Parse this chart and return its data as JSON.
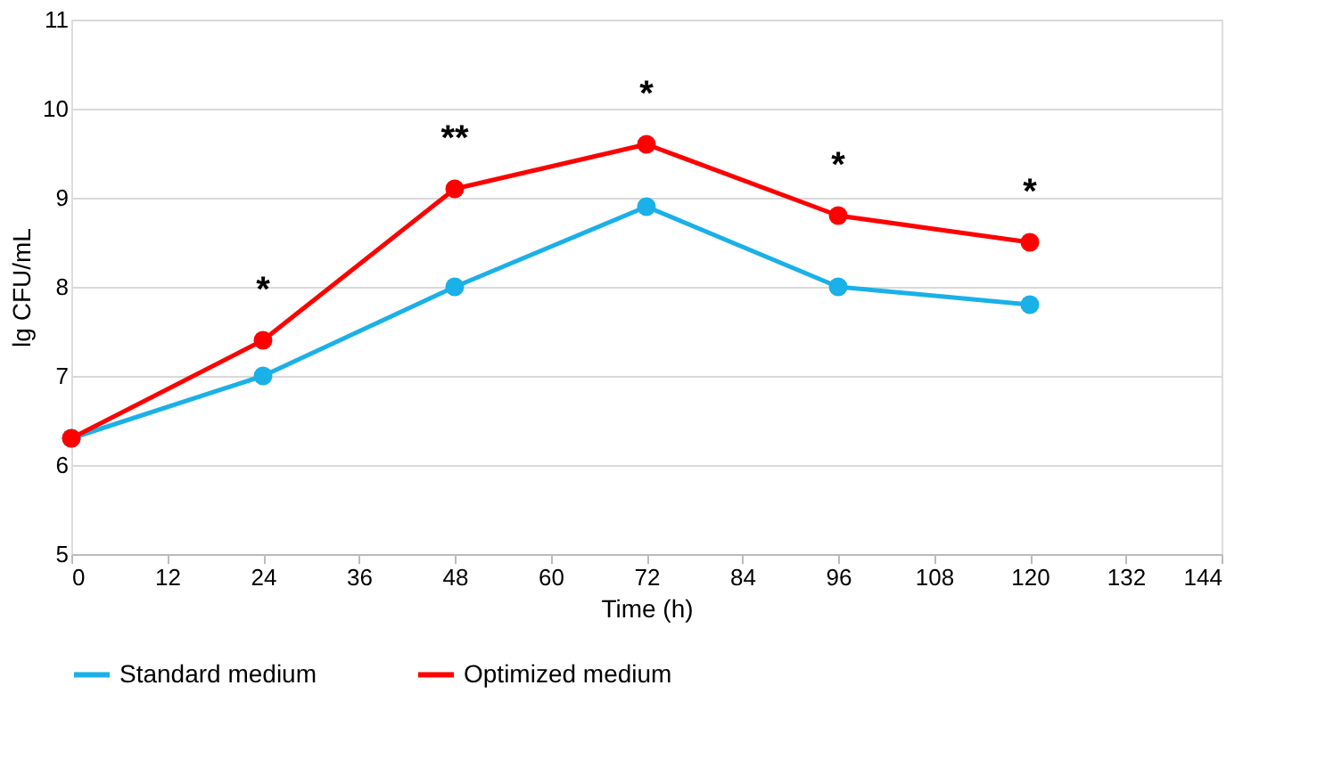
{
  "chart_data": {
    "type": "line",
    "xlabel": "Time (h)",
    "ylabel": "lg CFU/mL",
    "x": [
      0,
      24,
      48,
      72,
      96,
      120
    ],
    "series": [
      {
        "name": "Standard medium",
        "color": "#1ab0e8",
        "values": [
          6.3,
          7.0,
          8.0,
          8.9,
          8.0,
          7.8
        ]
      },
      {
        "name": "Optimized medium",
        "color": "#ff0000",
        "values": [
          6.3,
          7.4,
          9.1,
          9.6,
          8.8,
          8.5
        ]
      }
    ],
    "xlim": [
      0,
      144
    ],
    "xticks": [
      0,
      12,
      24,
      36,
      48,
      60,
      72,
      84,
      96,
      108,
      120,
      132,
      144
    ],
    "ylim": [
      5,
      11
    ],
    "yticks": [
      5,
      6,
      7,
      8,
      9,
      10,
      11
    ],
    "annotations": [
      {
        "text": "*",
        "x": 24,
        "y": 7.4
      },
      {
        "text": "**",
        "x": 48,
        "y": 9.1
      },
      {
        "text": "*",
        "x": 72,
        "y": 9.6
      },
      {
        "text": "*",
        "x": 96,
        "y": 8.8
      },
      {
        "text": "*",
        "x": 120,
        "y": 8.5
      }
    ],
    "grid": "y",
    "legend": "bottom",
    "marker": "circle",
    "line_style": "solid"
  }
}
